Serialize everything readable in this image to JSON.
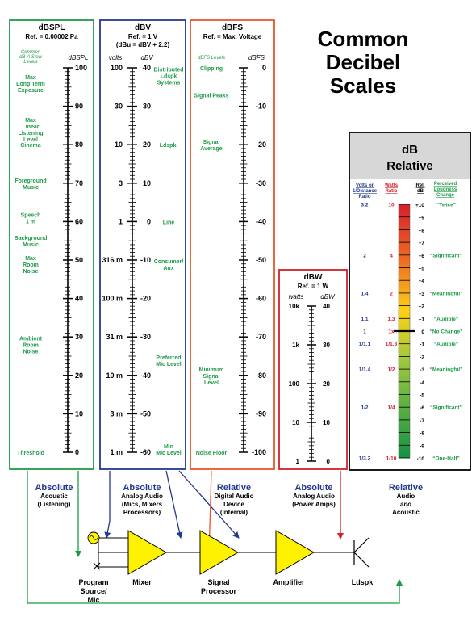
{
  "title_lines": [
    "Common",
    "Decibel",
    "Scales"
  ],
  "colors": {
    "green": "#1e9b48",
    "blue": "#23388f",
    "orange": "#e8582a",
    "red": "#d41f2a",
    "yellow": "#fff200",
    "relative_title_bg": "#d7d7d7"
  },
  "panels": {
    "dbspl": {
      "title": "dBSPL",
      "ref": "Ref. = 0.00002 Pa",
      "side_note": [
        "Common",
        "dB-A Slow",
        "Levels"
      ],
      "unit": "dBSPL",
      "ticks": [
        "100",
        "90",
        "80",
        "70",
        "60",
        "50",
        "40",
        "30",
        "20",
        "10",
        "0"
      ],
      "labels": [
        {
          "v": 96,
          "lines": [
            "Max",
            "Long Term",
            "Exposure"
          ]
        },
        {
          "v": 84,
          "lines": [
            "Max",
            "Linear",
            "Listening",
            "Level"
          ]
        },
        {
          "v": 80,
          "lines": [
            "Cinema"
          ]
        },
        {
          "v": 70,
          "lines": [
            "Foreground",
            "Music"
          ]
        },
        {
          "v": 61,
          "lines": [
            "Speech",
            "1 m"
          ]
        },
        {
          "v": 55,
          "lines": [
            "Background",
            "Music"
          ]
        },
        {
          "v": 49,
          "lines": [
            "Max",
            "Room",
            "Noise"
          ]
        },
        {
          "v": 28,
          "lines": [
            "Ambient",
            "Room",
            "Noise"
          ]
        },
        {
          "v": 0,
          "lines": [
            "Threshold"
          ]
        }
      ]
    },
    "dbv": {
      "title": "dBV",
      "ref": "Ref. = 1 V",
      "ref2": "(dBu = dBV + 2.2)",
      "unit_left": "volts",
      "unit_right": "dBV",
      "ticks": [
        "40",
        "30",
        "20",
        "10",
        "0",
        "-10",
        "-20",
        "-30",
        "-40",
        "-50",
        "-60"
      ],
      "volts": [
        "100",
        "30",
        "10",
        "3",
        "1",
        "316 m",
        "100 m",
        "31 m",
        "10 m",
        "3 m",
        "1 m"
      ],
      "labels": [
        {
          "v": 38,
          "lines": [
            "Distributed",
            "Ldspk",
            "Systems"
          ]
        },
        {
          "v": 20,
          "lines": [
            "Ldspk."
          ]
        },
        {
          "v": 0,
          "lines": [
            "Line"
          ]
        },
        {
          "v": -11,
          "lines": [
            "Consumer/",
            "Aux"
          ]
        },
        {
          "v": -36,
          "lines": [
            "Preferred",
            "Mic Level"
          ]
        },
        {
          "v": -60,
          "lines": [
            "Min",
            "Mic Level"
          ]
        }
      ]
    },
    "dbfs": {
      "title": "dBFS",
      "ref": "Ref. = Max. Voltage",
      "unit_left": "dBFS Levels",
      "unit_right": "dBFS",
      "ticks": [
        "0",
        "-10",
        "-20",
        "-30",
        "-40",
        "-50",
        "-60",
        "-70",
        "-80",
        "-90",
        "-100"
      ],
      "labels": [
        {
          "v": 0,
          "lines": [
            "Clipping"
          ]
        },
        {
          "v": -7,
          "lines": [
            "Signal Peaks"
          ]
        },
        {
          "v": -20,
          "lines": [
            "Signal",
            "Average"
          ]
        },
        {
          "v": -80,
          "lines": [
            "Minimum",
            "Signal",
            "Level"
          ]
        },
        {
          "v": -100,
          "lines": [
            "Noise Floor"
          ]
        }
      ]
    },
    "dbw": {
      "title": "dBW",
      "ref": "Ref. = 1 W",
      "unit_left": "watts",
      "unit_right": "dBW",
      "ticks": [
        "40",
        "30",
        "20",
        "10",
        "0"
      ],
      "watts": [
        "10k",
        "1k",
        "100",
        "10",
        "1"
      ]
    },
    "relative": {
      "title_lines": [
        "dB",
        "Relative"
      ],
      "col_headers": [
        [
          "Volts or",
          "1/Distance",
          "Ratio"
        ],
        [
          "Watts",
          "Ratio"
        ],
        [
          "Rel.",
          "dB"
        ],
        [
          "Perceived",
          "Loudness",
          "Change"
        ]
      ],
      "ticks": [
        "+10",
        "+9",
        "+8",
        "+7",
        "+6",
        "+5",
        "+4",
        "+3",
        "+2",
        "+1",
        "0",
        "-1",
        "-2",
        "-3",
        "-4",
        "-5",
        "-6",
        "-7",
        "-8",
        "-9",
        "-10"
      ],
      "rows": [
        {
          "v": 10,
          "volts": "3.2",
          "watts": "10",
          "loud": "“Twice”"
        },
        {
          "v": 6,
          "volts": "2",
          "watts": "4",
          "loud": "“Significant”"
        },
        {
          "v": 3,
          "volts": "1.4",
          "watts": "2",
          "loud": "“Meaningful”"
        },
        {
          "v": 1,
          "volts": "1.1",
          "watts": "1.3",
          "loud": "“Audible”"
        },
        {
          "v": 0,
          "volts": "1",
          "watts": "1x",
          "loud": "“No Change”"
        },
        {
          "v": -1,
          "volts": "1/1.1",
          "watts": "1/1.3",
          "loud": "“Audible”"
        },
        {
          "v": -3,
          "volts": "1/1.4",
          "watts": "1/2",
          "loud": "“Meaningful”"
        },
        {
          "v": -6,
          "volts": "1/2",
          "watts": "1/4",
          "loud": "“Significant”"
        },
        {
          "v": -10,
          "volts": "1/3.2",
          "watts": "1/10",
          "loud": "“One-Half”"
        }
      ]
    }
  },
  "categories": [
    {
      "key": "absolute-acoustic",
      "title": "Absolute",
      "lines": [
        "Acoustic",
        "(Listening)"
      ]
    },
    {
      "key": "absolute-analog-audio",
      "title": "Absolute",
      "lines": [
        "Analog Audio",
        "(Mics, Mixers",
        "Processors)"
      ]
    },
    {
      "key": "relative-digital-audio",
      "title": "Relative",
      "lines": [
        "Digital Audio",
        "Device",
        "(Internal)"
      ]
    },
    {
      "key": "absolute-power-amps",
      "title": "Absolute",
      "lines": [
        "Analog Audio",
        "(Power Amps)"
      ]
    },
    {
      "key": "relative-audio-acoustic",
      "title": "Relative",
      "lines": [
        "Audio",
        "and",
        "Acoustic"
      ]
    }
  ],
  "signal_chain": [
    {
      "key": "program-source",
      "lines": [
        "Program",
        "Source/",
        "Mic"
      ]
    },
    {
      "key": "mixer",
      "lines": [
        "Mixer"
      ]
    },
    {
      "key": "signal-processor",
      "lines": [
        "Signal",
        "Processor"
      ]
    },
    {
      "key": "amplifier",
      "lines": [
        "Amplifier"
      ]
    },
    {
      "key": "loudspeaker",
      "lines": [
        "Ldspk"
      ]
    }
  ]
}
